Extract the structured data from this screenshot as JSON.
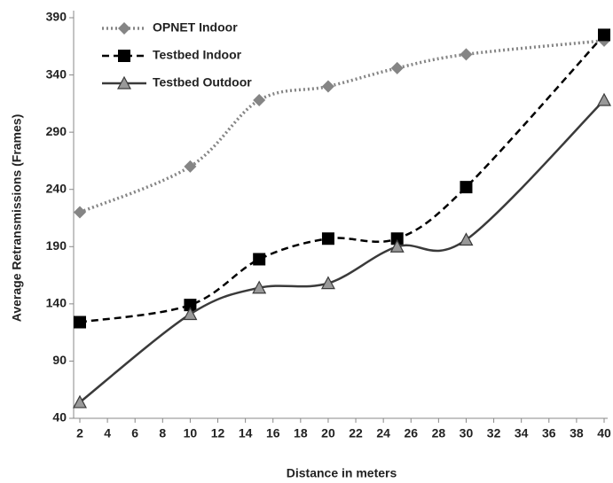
{
  "chart_data": {
    "type": "line",
    "x": [
      2,
      10,
      15,
      20,
      25,
      30,
      40
    ],
    "series": [
      {
        "name": "OPNET Indoor",
        "color": "#858585",
        "marker": "diamond",
        "dash": "dotted",
        "values": [
          220,
          260,
          318,
          330,
          346,
          358,
          370
        ]
      },
      {
        "name": "Testbed Indoor",
        "color": "#000000",
        "marker": "square",
        "dash": "dashed",
        "values": [
          124,
          139,
          179,
          197,
          197,
          242,
          375
        ]
      },
      {
        "name": "Testbed Outdoor",
        "color": "#3a3a3a",
        "marker": "triangle",
        "dash": "solid",
        "values": [
          54,
          131,
          154,
          158,
          190,
          196,
          318
        ]
      }
    ],
    "xlabel": "Distance in meters",
    "ylabel": "Average Retransmissions (Frames)",
    "xlim": [
      2,
      40
    ],
    "ylim": [
      40,
      390
    ],
    "xticks": [
      2,
      4,
      6,
      8,
      10,
      12,
      14,
      16,
      18,
      20,
      22,
      24,
      26,
      28,
      30,
      32,
      34,
      36,
      38,
      40
    ],
    "yticks": [
      40,
      90,
      140,
      190,
      240,
      290,
      340,
      390
    ],
    "grid": false,
    "legend": "upper left",
    "smooth": true
  }
}
